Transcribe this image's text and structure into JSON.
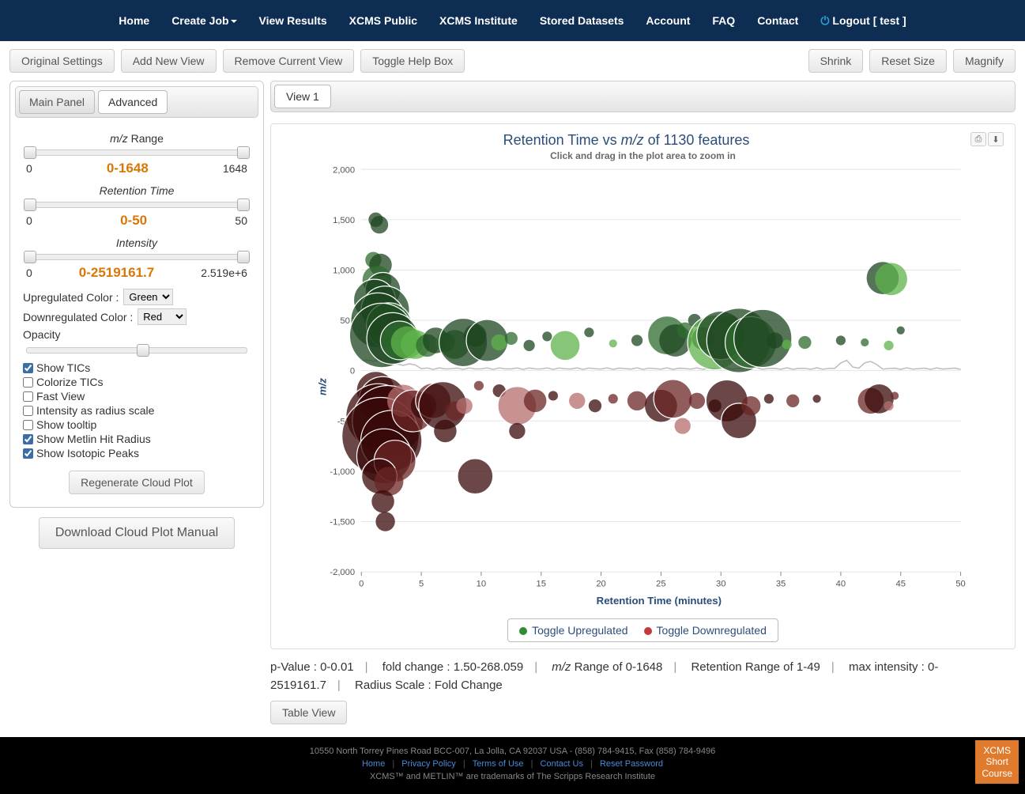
{
  "nav": {
    "items": [
      "Home",
      "Create Job",
      "View Results",
      "XCMS Public",
      "XCMS Institute",
      "Stored Datasets",
      "Account",
      "FAQ",
      "Contact"
    ],
    "logout": "Logout [ test ]"
  },
  "toolbar": {
    "original": "Original Settings",
    "add": "Add New View",
    "remove": "Remove Current View",
    "help": "Toggle Help Box",
    "shrink": "Shrink",
    "reset": "Reset Size",
    "magnify": "Magnify"
  },
  "sidebar": {
    "tabs": {
      "main": "Main Panel",
      "advanced": "Advanced"
    },
    "mz": {
      "label": "m/z Range",
      "min": "0",
      "max": "1648",
      "val": "0-1648"
    },
    "rt": {
      "label": "Retention Time",
      "min": "0",
      "max": "50",
      "val": "0-50"
    },
    "intensity": {
      "label": "Intensity",
      "min": "0",
      "max": "2.519e+6",
      "val": "0-2519161.7"
    },
    "upcolor_label": "Upregulated Color :",
    "upcolor": "Green",
    "downcolor_label": "Downregulated Color :",
    "downcolor": "Red",
    "opacity_label": "Opacity",
    "checks": [
      {
        "label": "Show TICs",
        "checked": true
      },
      {
        "label": "Colorize TICs",
        "checked": false
      },
      {
        "label": "Fast View",
        "checked": false
      },
      {
        "label": "Intensity as radius scale",
        "checked": false
      },
      {
        "label": "Show tooltip",
        "checked": false
      },
      {
        "label": "Show Metlin Hit Radius",
        "checked": true
      },
      {
        "label": "Show Isotopic Peaks",
        "checked": true
      }
    ],
    "regenerate": "Regenerate Cloud Plot",
    "download": "Download Cloud Plot Manual"
  },
  "plot": {
    "tab": "View 1",
    "title_a": "Retention Time vs ",
    "title_b": "m/z",
    "title_c": " of 1130 features",
    "subtitle": "Click and drag in the plot area to zoom in",
    "ylabel": "m/z",
    "xlabel": "Retention Time (minutes)",
    "ylim": [
      -2000,
      2000
    ],
    "yticks": [
      -2000,
      -1500,
      -1000,
      -500,
      0,
      500,
      1000,
      1500,
      2000
    ],
    "xlim": [
      0,
      50
    ],
    "xticks": [
      0,
      5,
      10,
      15,
      20,
      25,
      30,
      35,
      40,
      45,
      50
    ],
    "colors": {
      "up_dark": "#1e4620",
      "up_mid": "#2f6b2f",
      "up_light": "#5fb34b",
      "down_dark": "#3a0a0a",
      "down_mid": "#6b2525",
      "down_light": "#b56e6e",
      "grid": "#e5e5e5",
      "axis": "#c8c8c8",
      "tic": "#bdbdbd",
      "label": "#2b4d7a"
    },
    "legend": {
      "up": "Toggle Upregulated",
      "down": "Toggle Downregulated"
    },
    "bubbles_up": [
      {
        "x": 1.2,
        "y": 1500,
        "r": 9,
        "c": "up_dark"
      },
      {
        "x": 1.5,
        "y": 1450,
        "r": 11,
        "c": "up_dark"
      },
      {
        "x": 1.0,
        "y": 1100,
        "r": 10,
        "c": "up_mid"
      },
      {
        "x": 1.6,
        "y": 1050,
        "r": 14,
        "c": "up_dark"
      },
      {
        "x": 1.3,
        "y": 900,
        "r": 18,
        "c": "up_mid"
      },
      {
        "x": 1.8,
        "y": 800,
        "r": 22,
        "c": "up_dark"
      },
      {
        "x": 1.1,
        "y": 700,
        "r": 26,
        "c": "up_dark"
      },
      {
        "x": 2.0,
        "y": 600,
        "r": 30,
        "c": "up_dark"
      },
      {
        "x": 1.4,
        "y": 500,
        "r": 34,
        "c": "up_dark"
      },
      {
        "x": 2.3,
        "y": 450,
        "r": 28,
        "c": "up_mid"
      },
      {
        "x": 1.7,
        "y": 350,
        "r": 40,
        "c": "up_dark"
      },
      {
        "x": 2.6,
        "y": 320,
        "r": 32,
        "c": "up_dark"
      },
      {
        "x": 3.2,
        "y": 300,
        "r": 24,
        "c": "up_mid"
      },
      {
        "x": 3.8,
        "y": 280,
        "r": 20,
        "c": "up_light"
      },
      {
        "x": 4.5,
        "y": 260,
        "r": 18,
        "c": "up_light"
      },
      {
        "x": 5.5,
        "y": 250,
        "r": 14,
        "c": "up_mid"
      },
      {
        "x": 6.2,
        "y": 300,
        "r": 16,
        "c": "up_dark"
      },
      {
        "x": 7.0,
        "y": 280,
        "r": 12,
        "c": "up_mid"
      },
      {
        "x": 7.8,
        "y": 260,
        "r": 18,
        "c": "up_mid"
      },
      {
        "x": 8.5,
        "y": 280,
        "r": 30,
        "c": "up_dark"
      },
      {
        "x": 9.5,
        "y": 350,
        "r": 14,
        "c": "up_dark"
      },
      {
        "x": 10.5,
        "y": 300,
        "r": 26,
        "c": "up_dark"
      },
      {
        "x": 11.5,
        "y": 280,
        "r": 10,
        "c": "up_light"
      },
      {
        "x": 12.5,
        "y": 320,
        "r": 8,
        "c": "up_mid"
      },
      {
        "x": 14.0,
        "y": 250,
        "r": 7,
        "c": "up_dark"
      },
      {
        "x": 15.5,
        "y": 340,
        "r": 6,
        "c": "up_dark"
      },
      {
        "x": 17.0,
        "y": 250,
        "r": 18,
        "c": "up_light"
      },
      {
        "x": 19.0,
        "y": 380,
        "r": 6,
        "c": "up_dark"
      },
      {
        "x": 21.0,
        "y": 270,
        "r": 5,
        "c": "up_light"
      },
      {
        "x": 23.0,
        "y": 300,
        "r": 7,
        "c": "up_dark"
      },
      {
        "x": 25.5,
        "y": 350,
        "r": 24,
        "c": "up_mid"
      },
      {
        "x": 26.2,
        "y": 300,
        "r": 20,
        "c": "up_dark"
      },
      {
        "x": 27.0,
        "y": 400,
        "r": 10,
        "c": "up_mid"
      },
      {
        "x": 27.8,
        "y": 500,
        "r": 8,
        "c": "up_dark"
      },
      {
        "x": 28.5,
        "y": 320,
        "r": 14,
        "c": "up_dark"
      },
      {
        "x": 29.5,
        "y": 280,
        "r": 34,
        "c": "up_light"
      },
      {
        "x": 30.0,
        "y": 350,
        "r": 30,
        "c": "up_dark"
      },
      {
        "x": 30.8,
        "y": 450,
        "r": 12,
        "c": "up_mid"
      },
      {
        "x": 31.5,
        "y": 300,
        "r": 40,
        "c": "up_dark"
      },
      {
        "x": 32.5,
        "y": 280,
        "r": 32,
        "c": "up_mid"
      },
      {
        "x": 33.5,
        "y": 320,
        "r": 36,
        "c": "up_dark"
      },
      {
        "x": 34.5,
        "y": 300,
        "r": 10,
        "c": "up_dark"
      },
      {
        "x": 35.5,
        "y": 260,
        "r": 6,
        "c": "up_light"
      },
      {
        "x": 37.0,
        "y": 280,
        "r": 8,
        "c": "up_mid"
      },
      {
        "x": 40.0,
        "y": 300,
        "r": 6,
        "c": "up_dark"
      },
      {
        "x": 42.0,
        "y": 280,
        "r": 5,
        "c": "up_mid"
      },
      {
        "x": 43.5,
        "y": 920,
        "r": 20,
        "c": "up_dark"
      },
      {
        "x": 44.2,
        "y": 910,
        "r": 20,
        "c": "up_light"
      },
      {
        "x": 44.0,
        "y": 250,
        "r": 6,
        "c": "up_light"
      },
      {
        "x": 45.0,
        "y": 400,
        "r": 5,
        "c": "up_dark"
      }
    ],
    "bubbles_down": [
      {
        "x": 1.2,
        "y": -200,
        "r": 24,
        "c": "down_dark"
      },
      {
        "x": 1.8,
        "y": -300,
        "r": 30,
        "c": "down_dark"
      },
      {
        "x": 1.4,
        "y": -450,
        "r": 40,
        "c": "down_dark"
      },
      {
        "x": 2.2,
        "y": -500,
        "r": 44,
        "c": "down_dark"
      },
      {
        "x": 1.6,
        "y": -650,
        "r": 48,
        "c": "down_dark"
      },
      {
        "x": 2.5,
        "y": -700,
        "r": 38,
        "c": "down_dark"
      },
      {
        "x": 1.9,
        "y": -850,
        "r": 34,
        "c": "down_dark"
      },
      {
        "x": 2.8,
        "y": -900,
        "r": 26,
        "c": "down_mid"
      },
      {
        "x": 1.5,
        "y": -1050,
        "r": 22,
        "c": "down_dark"
      },
      {
        "x": 2.3,
        "y": -1100,
        "r": 18,
        "c": "down_mid"
      },
      {
        "x": 1.8,
        "y": -1300,
        "r": 14,
        "c": "down_dark"
      },
      {
        "x": 2.0,
        "y": -1500,
        "r": 12,
        "c": "down_dark"
      },
      {
        "x": 3.5,
        "y": -300,
        "r": 20,
        "c": "down_light"
      },
      {
        "x": 4.3,
        "y": -400,
        "r": 26,
        "c": "down_mid"
      },
      {
        "x": 5.2,
        "y": -350,
        "r": 16,
        "c": "down_dark"
      },
      {
        "x": 6.0,
        "y": -300,
        "r": 22,
        "c": "down_mid"
      },
      {
        "x": 6.8,
        "y": -350,
        "r": 30,
        "c": "down_dark"
      },
      {
        "x": 7.0,
        "y": -600,
        "r": 14,
        "c": "down_dark"
      },
      {
        "x": 7.8,
        "y": -400,
        "r": 12,
        "c": "down_mid"
      },
      {
        "x": 8.6,
        "y": -350,
        "r": 10,
        "c": "down_light"
      },
      {
        "x": 9.5,
        "y": -1050,
        "r": 22,
        "c": "down_dark"
      },
      {
        "x": 9.8,
        "y": -150,
        "r": 6,
        "c": "down_mid"
      },
      {
        "x": 11.5,
        "y": -200,
        "r": 8,
        "c": "down_dark"
      },
      {
        "x": 13.0,
        "y": -350,
        "r": 24,
        "c": "down_light"
      },
      {
        "x": 13.0,
        "y": -600,
        "r": 10,
        "c": "down_dark"
      },
      {
        "x": 14.5,
        "y": -300,
        "r": 14,
        "c": "down_mid"
      },
      {
        "x": 16.0,
        "y": -250,
        "r": 6,
        "c": "down_dark"
      },
      {
        "x": 18.0,
        "y": -300,
        "r": 10,
        "c": "down_light"
      },
      {
        "x": 19.5,
        "y": -350,
        "r": 8,
        "c": "down_dark"
      },
      {
        "x": 21.0,
        "y": -280,
        "r": 6,
        "c": "down_mid"
      },
      {
        "x": 23.0,
        "y": -300,
        "r": 12,
        "c": "down_mid"
      },
      {
        "x": 25.0,
        "y": -350,
        "r": 20,
        "c": "down_dark"
      },
      {
        "x": 26.0,
        "y": -280,
        "r": 24,
        "c": "down_mid"
      },
      {
        "x": 26.8,
        "y": -550,
        "r": 10,
        "c": "down_light"
      },
      {
        "x": 28.0,
        "y": -300,
        "r": 10,
        "c": "down_mid"
      },
      {
        "x": 29.5,
        "y": -350,
        "r": 8,
        "c": "down_dark"
      },
      {
        "x": 30.5,
        "y": -300,
        "r": 26,
        "c": "down_dark"
      },
      {
        "x": 31.5,
        "y": -500,
        "r": 22,
        "c": "down_dark"
      },
      {
        "x": 32.5,
        "y": -350,
        "r": 12,
        "c": "down_mid"
      },
      {
        "x": 34.0,
        "y": -280,
        "r": 6,
        "c": "down_dark"
      },
      {
        "x": 36.0,
        "y": -300,
        "r": 8,
        "c": "down_mid"
      },
      {
        "x": 38.0,
        "y": -280,
        "r": 5,
        "c": "down_dark"
      },
      {
        "x": 42.5,
        "y": -300,
        "r": 16,
        "c": "down_mid"
      },
      {
        "x": 43.2,
        "y": -280,
        "r": 18,
        "c": "down_dark"
      },
      {
        "x": 44.0,
        "y": -350,
        "r": 6,
        "c": "down_light"
      },
      {
        "x": 44.5,
        "y": -250,
        "r": 5,
        "c": "down_mid"
      }
    ]
  },
  "stats": {
    "pvalue": "p-Value : 0-0.01",
    "fold": "fold change : 1.50-268.059",
    "mz": "m/z Range of 0-1648",
    "rt": "Retention Range of 1-49",
    "intensity": "max intensity : 0-2519161.7",
    "radius": "Radius Scale : Fold Change",
    "table": "Table View"
  },
  "footer": {
    "addr": "10550 North Torrey Pines Road BCC-007, La Jolla, CA 92037 USA - (858) 784-9415, Fax (858) 784-9496",
    "links": [
      "Home",
      "Privacy Policy",
      "Terms of Use",
      "Contact Us",
      "Reset Password"
    ],
    "trademark": "XCMS™ and METLIN™ are trademarks of The Scripps Research Institute",
    "short": "XCMS Short Course"
  }
}
